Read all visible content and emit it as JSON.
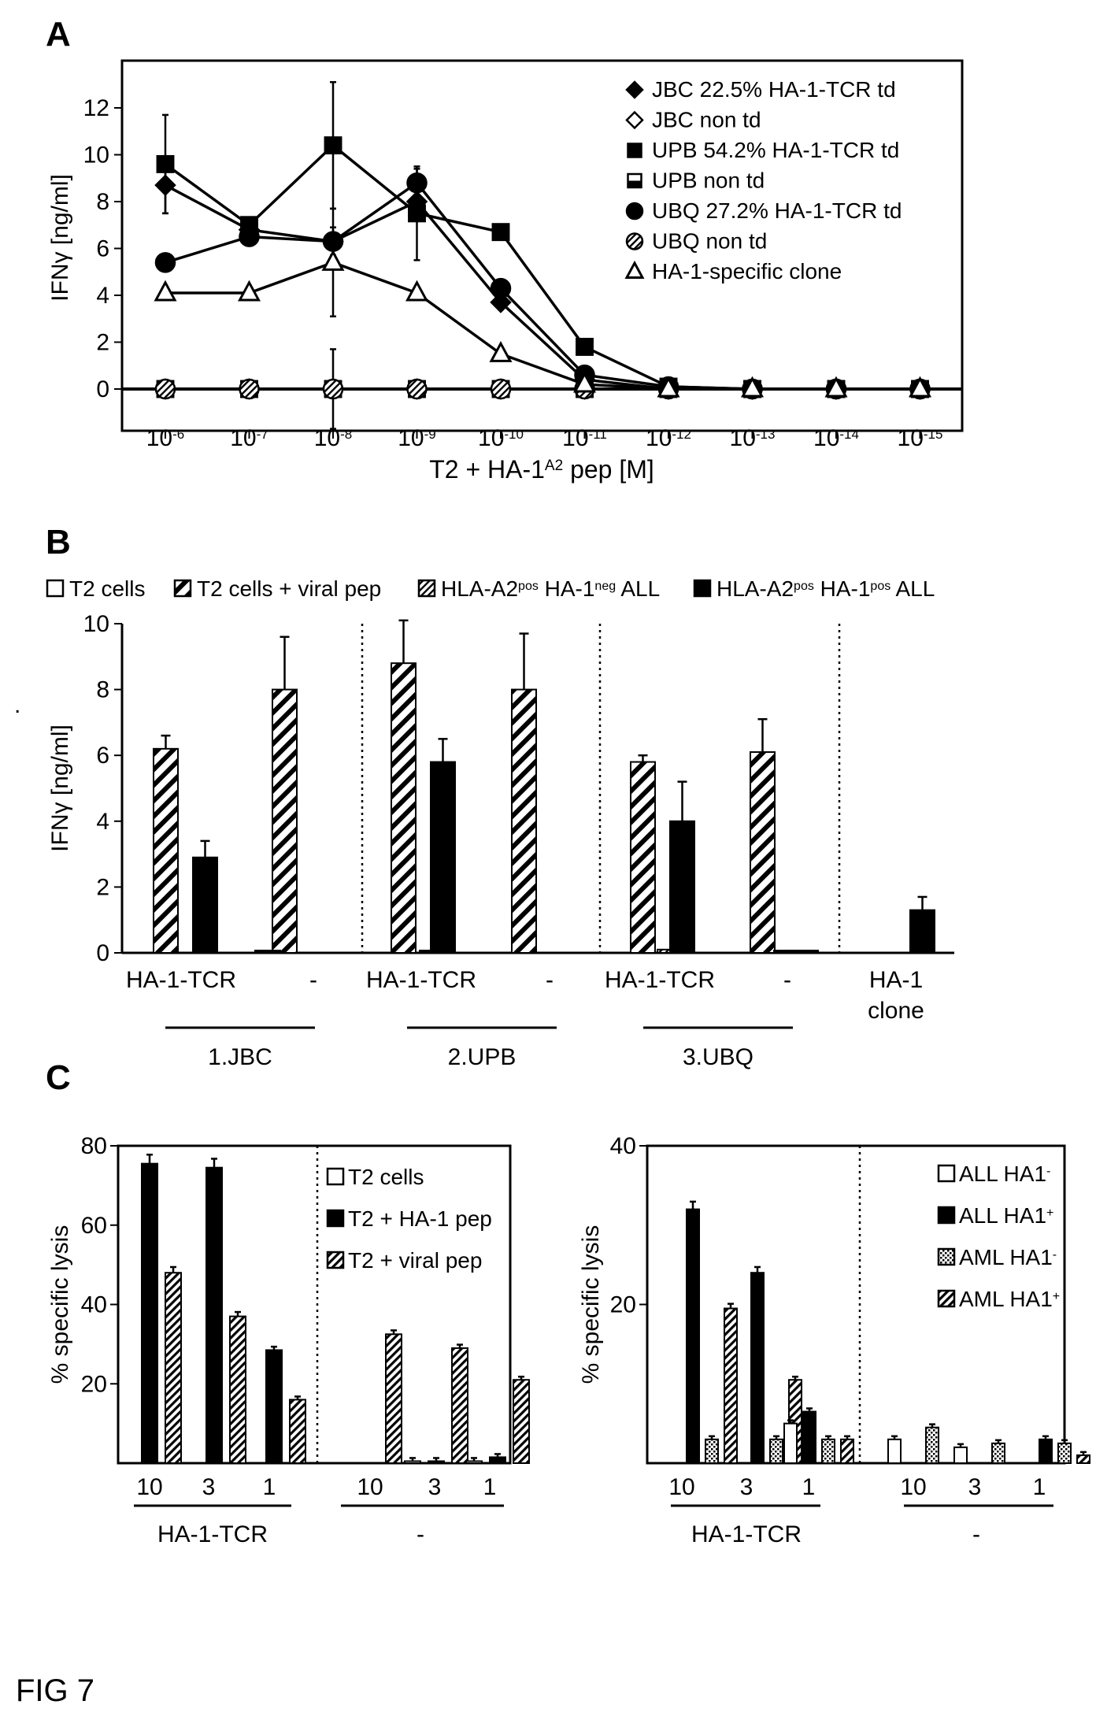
{
  "figure_label": "FIG 7",
  "stray_mark": ".",
  "chart_data": [
    {
      "panel": "A",
      "type": "line",
      "xlabel": "T2 + HA-1A2 pep [M]",
      "xlabel_parts": {
        "base": "T2 + HA-1",
        "sup": "A2",
        "tail": " pep  [M]"
      },
      "ylabel": "IFNγ [ng/ml]",
      "ylim": [
        -1.8,
        13.5
      ],
      "yticks": [
        0,
        2,
        4,
        6,
        8,
        10,
        12
      ],
      "categories": [
        "10-6",
        "10-7",
        "10-8",
        "10-9",
        "10-10",
        "10-11",
        "10-12",
        "10-13",
        "10-14",
        "10-15"
      ],
      "tick_labels": [
        {
          "base": "10",
          "sup": "-6"
        },
        {
          "base": "10",
          "sup": "-7"
        },
        {
          "base": "10",
          "sup": "-8"
        },
        {
          "base": "10",
          "sup": "-9"
        },
        {
          "base": "10",
          "sup": "-10"
        },
        {
          "base": "10",
          "sup": "-11"
        },
        {
          "base": "10",
          "sup": "-12"
        },
        {
          "base": "10",
          "sup": "-13"
        },
        {
          "base": "10",
          "sup": "-14"
        },
        {
          "base": "10",
          "sup": "-15"
        }
      ],
      "legend_position": "top-right",
      "series": [
        {
          "name": "JBC 22.5% HA-1-TCR td",
          "marker": "diamond-filled",
          "values": [
            8.7,
            6.8,
            6.3,
            8.0,
            3.7,
            0.4,
            0.0,
            0.0,
            0.0,
            0.0
          ],
          "errors": [
            1.2,
            0.2,
            0.6,
            0.3,
            0.3,
            0.1,
            0,
            0,
            0,
            0
          ]
        },
        {
          "name": "JBC non td",
          "marker": "diamond-open",
          "values": [
            0,
            0,
            0,
            0,
            0,
            0,
            0,
            0,
            0,
            0
          ],
          "errors": [
            0,
            0,
            0,
            0,
            0,
            0,
            0,
            0,
            0,
            0
          ]
        },
        {
          "name": "UPB 54.2% HA-1-TCR td",
          "marker": "square-filled",
          "values": [
            9.6,
            7.0,
            10.4,
            7.5,
            6.7,
            1.8,
            0.1,
            0.0,
            0.0,
            0.0
          ],
          "errors": [
            2.1,
            0.2,
            2.7,
            2.0,
            0.2,
            0.2,
            0,
            0,
            0,
            0
          ]
        },
        {
          "name": "UPB non td",
          "marker": "square-half",
          "values": [
            0,
            0,
            0,
            0,
            0,
            0,
            0,
            0,
            0,
            0
          ],
          "errors": [
            0,
            0,
            0,
            0,
            0,
            0,
            0,
            0,
            0,
            0
          ]
        },
        {
          "name": "UBQ 27.2% HA-1-TCR td",
          "marker": "circle-filled",
          "values": [
            5.4,
            6.5,
            6.3,
            8.8,
            4.3,
            0.6,
            0.1,
            0.0,
            0.0,
            0.0
          ],
          "errors": [
            0.1,
            0.2,
            0.2,
            0.6,
            0.2,
            0.1,
            0,
            0,
            0,
            0
          ]
        },
        {
          "name": "UBQ non td",
          "marker": "circle-hatched",
          "values": [
            0,
            0,
            0,
            0,
            0,
            0,
            0,
            0,
            0,
            0
          ],
          "errors": [
            0,
            0,
            1.7,
            0,
            0,
            0,
            0,
            0,
            0,
            0
          ]
        },
        {
          "name": "HA-1-specific clone",
          "marker": "triangle-open",
          "values": [
            4.1,
            4.1,
            5.4,
            4.1,
            1.5,
            0.2,
            0.0,
            0.0,
            0.0,
            0.0
          ],
          "errors": [
            0.2,
            0.1,
            2.3,
            0.2,
            0.2,
            0.1,
            0,
            0,
            0,
            0
          ]
        }
      ]
    },
    {
      "panel": "B",
      "type": "bar",
      "ylabel": "IFNγ [ng/ml]",
      "ylim": [
        0,
        10
      ],
      "yticks": [
        0,
        2,
        4,
        6,
        8,
        10
      ],
      "legend_position": "top",
      "legend": [
        {
          "name": "T2 cells",
          "fill": "open"
        },
        {
          "name": "T2 cells + viral pep",
          "fill": "hatch-wide",
          "base": "T2 cells + viral pep"
        },
        {
          "name": "HLA-A2pos HA-1neg ALL",
          "fill": "hatch-fine",
          "parts": [
            "HLA-A2",
            "pos",
            " HA-1",
            "neg",
            " ALL"
          ]
        },
        {
          "name": "HLA-A2pos HA-1pos ALL",
          "fill": "solid",
          "parts": [
            "HLA-A2",
            "pos",
            " HA-1",
            "pos",
            " ALL"
          ]
        }
      ],
      "groups": [
        {
          "label": "HA-1-TCR",
          "values": [
            0,
            6.2,
            0,
            2.9
          ],
          "errors": [
            0,
            0.4,
            0,
            0.5
          ]
        },
        {
          "label": "-",
          "values": [
            0,
            8.0,
            0,
            0
          ],
          "errors": [
            0,
            1.6,
            0,
            0
          ]
        },
        {
          "label": "HA-1-TCR",
          "values": [
            0,
            8.8,
            0,
            5.8
          ],
          "errors": [
            0,
            1.3,
            0,
            0.7
          ]
        },
        {
          "label": "-",
          "values": [
            0,
            8.0,
            0,
            0
          ],
          "errors": [
            0,
            1.7,
            0,
            0
          ]
        },
        {
          "label": "HA-1-TCR",
          "values": [
            0,
            5.8,
            0.1,
            4.0
          ],
          "errors": [
            0,
            0.2,
            0,
            1.2
          ]
        },
        {
          "label": "-",
          "values": [
            0,
            6.1,
            0,
            0
          ],
          "errors": [
            0,
            1.0,
            0,
            0
          ]
        },
        {
          "label_lines": [
            "HA-1",
            "clone"
          ],
          "values": [
            0,
            0,
            0,
            1.3
          ],
          "errors": [
            0,
            0,
            0,
            0.4
          ]
        }
      ],
      "donors": [
        "1.JBC",
        "2.UPB",
        "3.UBQ"
      ]
    },
    {
      "panel": "C-left",
      "type": "bar",
      "ylabel": "% specific lysis",
      "ylim": [
        0,
        80
      ],
      "yticks": [
        20,
        40,
        60,
        80
      ],
      "xlabel_groups": [
        "HA-1-TCR",
        "-"
      ],
      "ratios": [
        "10",
        "3",
        "1",
        "10",
        "3",
        "1"
      ],
      "legend_position": "top-right",
      "series": [
        {
          "name": "T2 cells",
          "fill": "open",
          "values": [
            0,
            0,
            0,
            0,
            0.5,
            0.5
          ]
        },
        {
          "name": "T2 + HA-1 pep",
          "fill": "solid",
          "values": [
            75.5,
            74.5,
            28.5,
            0,
            0.5,
            1.5
          ]
        },
        {
          "name": "T2 + viral pep",
          "fill": "hatch",
          "values": [
            48.0,
            37.0,
            16.0,
            32.5,
            29.0,
            21.0
          ]
        }
      ]
    },
    {
      "panel": "C-right",
      "type": "bar",
      "ylabel": "% specific lysis",
      "ylim": [
        0,
        40
      ],
      "yticks": [
        20,
        40
      ],
      "xlabel_groups": [
        "HA-1-TCR",
        "-"
      ],
      "ratios": [
        "10",
        "3",
        "1",
        "10",
        "3",
        "1"
      ],
      "legend_position": "top-right",
      "series": [
        {
          "name": "ALL HA1-",
          "label_base": "ALL HA1",
          "label_sup": "-",
          "fill": "open",
          "values": [
            0,
            0,
            5.0,
            3.0,
            2.0,
            0
          ]
        },
        {
          "name": "ALL HA1+",
          "label_base": "ALL HA1",
          "label_sup": "+",
          "fill": "solid",
          "values": [
            32.0,
            24.0,
            6.5,
            0,
            0,
            3.0
          ]
        },
        {
          "name": "AML HA1-",
          "label_base": "AML HA1",
          "label_sup": "-",
          "fill": "dotted",
          "values": [
            3.0,
            3.0,
            3.0,
            4.5,
            2.5,
            2.5
          ]
        },
        {
          "name": "AML HA1+",
          "label_base": "AML HA1",
          "label_sup": "+",
          "fill": "hatch",
          "values": [
            19.5,
            10.5,
            3.0,
            0,
            0,
            1.0
          ]
        }
      ]
    }
  ]
}
